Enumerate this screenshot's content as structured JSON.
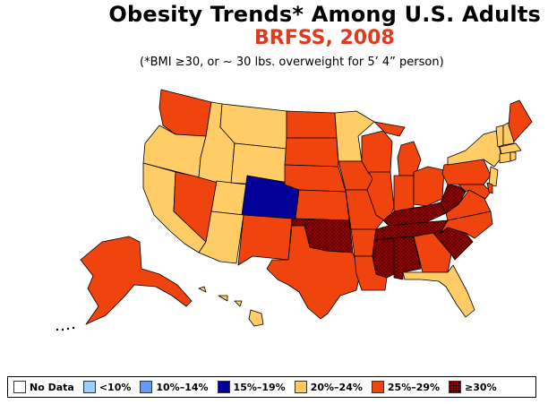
{
  "header": {
    "title": "Obesity Trends*  Among U.S. Adults",
    "subtitle": "BRFSS, 2008",
    "note": "(*BMI ≥30, or ~ 30 lbs. overweight for 5’ 4” person)"
  },
  "colors": {
    "title_red": "#e03a1e",
    "no_data": "#ffffff",
    "lt10": "#99ccff",
    "c10_14": "#6699ff",
    "c15_19": "#000099",
    "c20_24": "#ffcc66",
    "c25_29": "#f0440f",
    "c30plus": "#990000",
    "state_border": "#000000"
  },
  "legend": {
    "items": [
      {
        "label": "No Data",
        "color_key": "no_data"
      },
      {
        "label": "<10%",
        "color_key": "lt10"
      },
      {
        "label": "10%–14%",
        "color_key": "c10_14"
      },
      {
        "label": "15%–19%",
        "color_key": "c15_19"
      },
      {
        "label": "20%–24%",
        "color_key": "c20_24"
      },
      {
        "label": "25%–29%",
        "color_key": "c25_29"
      },
      {
        "label": "≥30%",
        "color_key": "c30plus"
      }
    ]
  },
  "map_data": {
    "categories": {
      "c15_19": [
        "CO"
      ],
      "c20_24": [
        "CA",
        "OR",
        "ID",
        "MT",
        "WY",
        "UT",
        "AZ",
        "MN",
        "FL",
        "NY",
        "NJ",
        "VT",
        "NH",
        "MA",
        "CT",
        "RI",
        "HI",
        "DC"
      ],
      "c25_29": [
        "WA",
        "NV",
        "NM",
        "TX",
        "ND",
        "SD",
        "NE",
        "KS",
        "IA",
        "MO",
        "AR",
        "LA",
        "WI",
        "IL",
        "IN",
        "MI",
        "OH",
        "GA",
        "NC",
        "VA",
        "PA",
        "MD",
        "DE",
        "ME",
        "AK"
      ],
      "c30plus": [
        "OK",
        "TN",
        "MS",
        "AL",
        "SC",
        "WV",
        "KY"
      ]
    }
  }
}
